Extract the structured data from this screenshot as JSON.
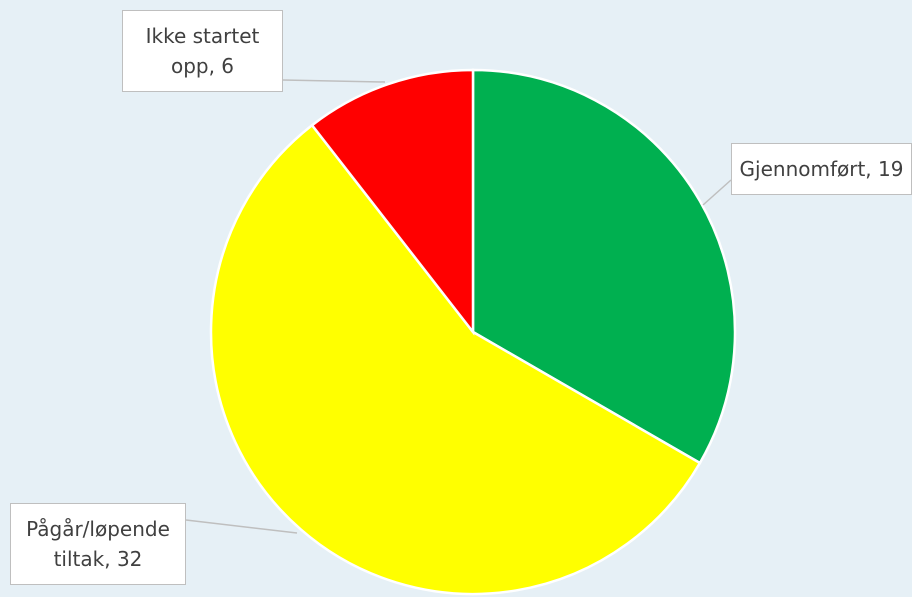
{
  "chart_data": {
    "type": "pie",
    "categories": [
      "Gjennomført",
      "Pågår/løpende tiltak",
      "Ikke startet opp"
    ],
    "values": [
      19,
      32,
      6
    ],
    "value_labels": [
      "Gjennomført, 19",
      "Pågår/løpende tiltak, 32",
      "Ikke startet opp, 6"
    ],
    "colors": [
      "#00b050",
      "#ffff00",
      "#ff0000"
    ]
  }
}
